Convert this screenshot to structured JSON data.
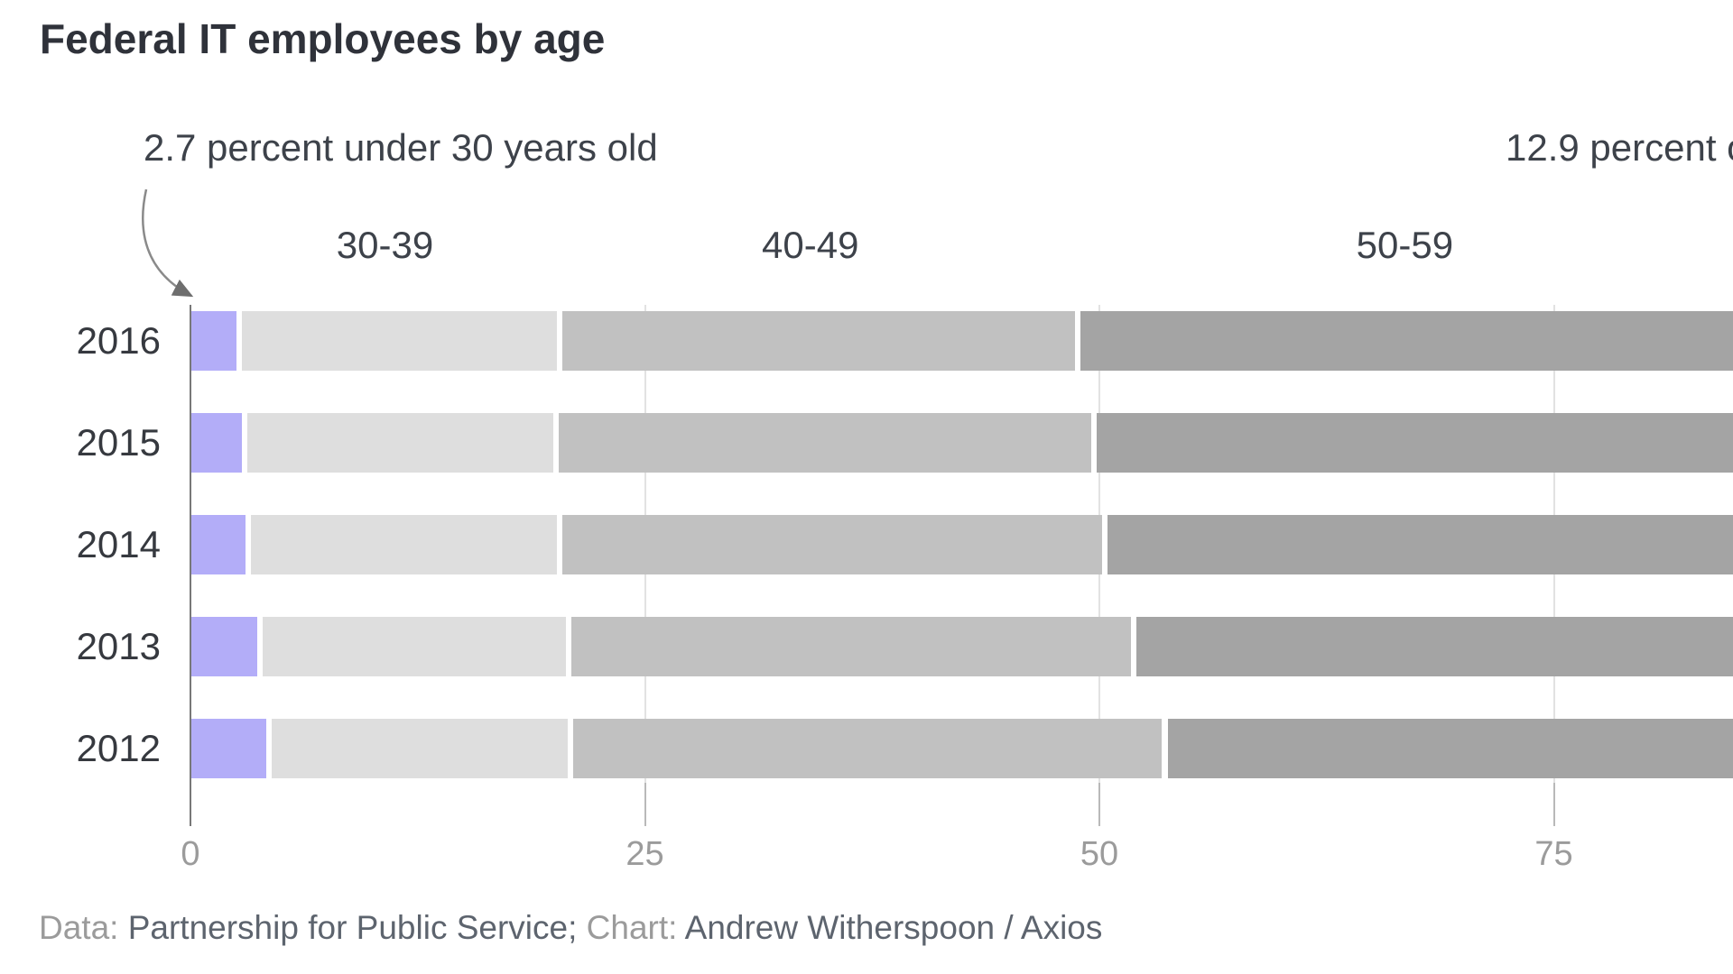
{
  "header": {
    "title": "Federal IT employees by age"
  },
  "annotations": {
    "under30": {
      "text": "2.7 percent under 30 years old",
      "points_to": "2016 under-30 segment"
    },
    "over60": {
      "text": "12.9 percent o",
      "truncated_by_viewport": true
    }
  },
  "chart_data": {
    "type": "bar",
    "orientation": "horizontal",
    "stacked": true,
    "title": "Federal IT employees by age",
    "categories": [
      "2016",
      "2015",
      "2014",
      "2013",
      "2012"
    ],
    "series": [
      {
        "name": "Under 30",
        "color": "#b3adf8",
        "values": [
          2.7,
          3.0,
          3.2,
          3.8,
          4.3
        ]
      },
      {
        "name": "30-39",
        "color": "#dedede",
        "values": [
          17.6,
          17.1,
          17.1,
          17.0,
          16.6
        ]
      },
      {
        "name": "40-49",
        "color": "#c1c1c1",
        "values": [
          28.5,
          29.6,
          30.0,
          31.1,
          32.7
        ]
      },
      {
        "name": "50-59",
        "color": "#a4a4a4",
        "values": [
          38.3,
          38.5,
          38.5,
          37.7,
          36.9
        ],
        "note": "right end of every 50-59 segment is clipped by the viewport edge"
      }
    ],
    "segment_labels": [
      {
        "label": "30-39",
        "x_percent": 10.7
      },
      {
        "label": "40-49",
        "x_percent": 34.1
      },
      {
        "label": "50-59",
        "x_percent": 66.8
      }
    ],
    "x_axis": {
      "ticks": [
        0,
        25,
        50,
        75
      ],
      "unit": "percent",
      "visible_range": [
        0,
        84.8
      ],
      "grid": true
    },
    "legend": "none (labels above bars)"
  },
  "footer": {
    "parts": [
      {
        "text": "Data: ",
        "muted": true
      },
      {
        "text": "Partnership for Public Service; ",
        "muted": false
      },
      {
        "text": "Chart: ",
        "muted": true
      },
      {
        "text": "Andrew Witherspoon / Axios",
        "muted": false
      }
    ]
  },
  "colors": {
    "background": "#ffffff",
    "title_text": "#2f323a",
    "annotation_text": "#3d424a",
    "year_label_text": "#36393f",
    "tick_label_text": "#9b9b9b",
    "axis_line": "#787878",
    "gridline": "#e2e2e2",
    "arrow": "#8a8a8a",
    "footer_muted": "#9b9b9b",
    "footer_strong": "#5d646e"
  }
}
